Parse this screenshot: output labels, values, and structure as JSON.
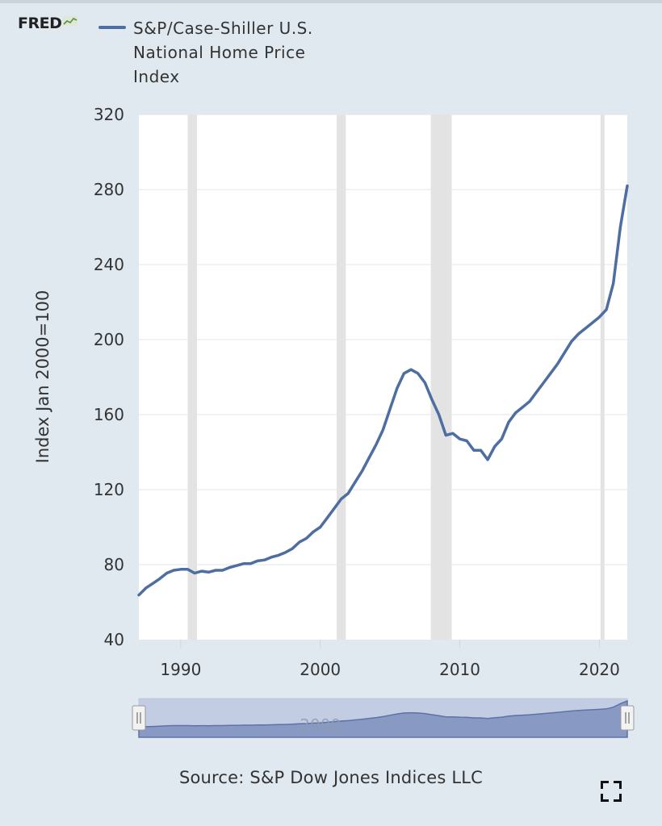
{
  "brand": {
    "logo_text": "FRED",
    "logo_icon": "chart-line-icon"
  },
  "legend": {
    "label": "S&P/Case-Shiller U.S. National Home Price Index",
    "color": "#4e6da1"
  },
  "source": "Source: S&P Dow Jones Indices LLC",
  "controls": {
    "expand_icon": "fullscreen-icon",
    "navigator_label": "2000"
  },
  "colors": {
    "line": "#4e6da1",
    "recession": "#e3e3e3",
    "background": "#e1e9f0",
    "plot": "#ffffff",
    "navigator_fill": "#8899c4",
    "navigator_selection": "#c2cde3"
  },
  "chart_data": {
    "type": "line",
    "title": "",
    "xlabel": "",
    "ylabel": "Index Jan 2000=100",
    "ylim": [
      40,
      320
    ],
    "xlim": [
      1987.0,
      2022.0
    ],
    "yticks": [
      40,
      80,
      120,
      160,
      200,
      240,
      280,
      320
    ],
    "xticks": [
      1990,
      2000,
      2010,
      2020
    ],
    "grid": true,
    "legend": "top-left",
    "recessions": [
      [
        1990.5,
        1991.17
      ],
      [
        2001.17,
        2001.83
      ],
      [
        2007.92,
        2009.42
      ],
      [
        2020.08,
        2020.25
      ]
    ],
    "series": [
      {
        "name": "S&P/Case-Shiller U.S. National Home Price Index",
        "x": [
          1987.0,
          1987.5,
          1988.0,
          1988.5,
          1989.0,
          1989.5,
          1990.0,
          1990.5,
          1991.0,
          1991.5,
          1992.0,
          1992.5,
          1993.0,
          1993.5,
          1994.0,
          1994.5,
          1995.0,
          1995.5,
          1996.0,
          1996.5,
          1997.0,
          1997.5,
          1998.0,
          1998.5,
          1999.0,
          1999.5,
          2000.0,
          2000.5,
          2001.0,
          2001.5,
          2002.0,
          2002.5,
          2003.0,
          2003.5,
          2004.0,
          2004.5,
          2005.0,
          2005.5,
          2006.0,
          2006.5,
          2007.0,
          2007.5,
          2008.0,
          2008.5,
          2009.0,
          2009.5,
          2010.0,
          2010.5,
          2011.0,
          2011.5,
          2012.0,
          2012.5,
          2013.0,
          2013.5,
          2014.0,
          2014.5,
          2015.0,
          2015.5,
          2016.0,
          2016.5,
          2017.0,
          2017.5,
          2018.0,
          2018.5,
          2019.0,
          2019.5,
          2020.0,
          2020.5,
          2021.0,
          2021.5,
          2022.0
        ],
        "y": [
          63.8,
          67.5,
          70,
          72.5,
          75.5,
          77,
          77.5,
          77.5,
          75.5,
          76.5,
          76,
          77,
          77,
          78.5,
          79.5,
          80.5,
          80.5,
          82,
          82.5,
          84,
          85,
          86.5,
          88.5,
          92,
          94,
          97.5,
          100,
          105,
          110,
          115,
          118,
          124,
          130,
          137,
          144,
          152,
          163,
          174,
          182,
          184,
          182,
          177,
          168,
          160,
          149,
          150,
          147,
          146,
          141,
          141,
          136,
          143,
          147,
          156,
          161,
          164,
          167,
          172,
          177,
          182,
          187,
          193,
          199,
          203,
          206,
          209,
          212,
          216,
          230,
          260,
          282
        ]
      }
    ]
  }
}
